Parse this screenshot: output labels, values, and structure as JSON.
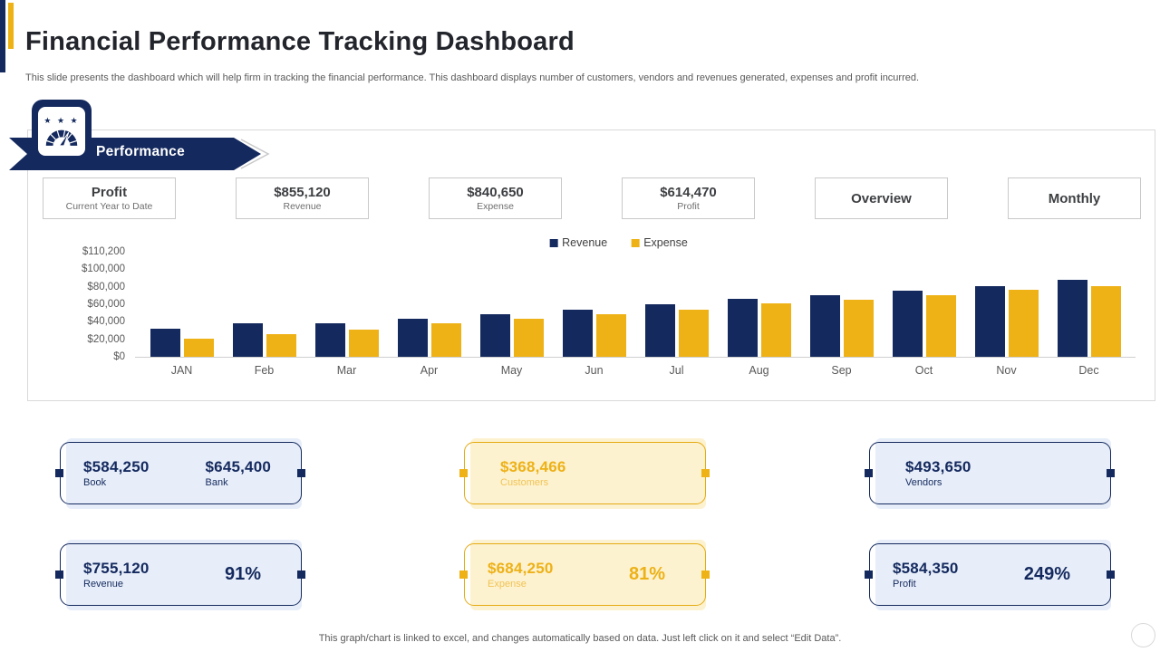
{
  "page": {
    "title": "Financial Performance Tracking Dashboard",
    "subtitle": "This slide presents the dashboard which will help firm in tracking the financial performance. This dashboard displays number of customers, vendors and revenues generated, expenses and profit incurred.",
    "footer": "This graph/chart is linked to excel, and changes automatically based on data. Just left click on it and select “Edit Data”."
  },
  "theme": {
    "navy": "#14295e",
    "gold": "#eeb216"
  },
  "banner": {
    "label": "Performance",
    "icon": "gauge-with-stars-icon"
  },
  "kpis": [
    {
      "name": "kpi-profit-current-year",
      "value": "Profit",
      "label": "Current Year to Date",
      "interactable": false
    },
    {
      "name": "kpi-revenue",
      "value": "$855,120",
      "label": "Revenue",
      "interactable": false
    },
    {
      "name": "kpi-expense",
      "value": "$840,650",
      "label": "Expense",
      "interactable": false
    },
    {
      "name": "kpi-profit",
      "value": "$614,470",
      "label": "Profit",
      "interactable": false
    },
    {
      "name": "view-toggle-overview",
      "value": "Overview",
      "label": "",
      "interactable": true
    },
    {
      "name": "view-toggle-monthly",
      "value": "Monthly",
      "label": "",
      "interactable": true
    }
  ],
  "chart_data": {
    "type": "bar",
    "title": "",
    "categories": [
      "JAN",
      "Feb",
      "Mar",
      "Apr",
      "May",
      "Jun",
      "Jul",
      "Aug",
      "Sep",
      "Oct",
      "Nov",
      "Dec"
    ],
    "series": [
      {
        "name": "Revenue",
        "color": "#14295e",
        "values": [
          32000,
          38000,
          38000,
          43000,
          49000,
          54000,
          60000,
          66000,
          70000,
          76000,
          81000,
          88000
        ]
      },
      {
        "name": "Expense",
        "color": "#eeb216",
        "values": [
          21000,
          26000,
          31000,
          38000,
          43000,
          49000,
          54000,
          61000,
          65000,
          70000,
          77000,
          81000
        ]
      }
    ],
    "y_ticks": [
      "$110,200",
      "$100,000",
      "$80,000",
      "$60,000",
      "$40,000",
      "$20,000",
      "$0"
    ],
    "ylim": [
      0,
      110200
    ],
    "xlabel": "",
    "ylabel": "",
    "legend_position": "top-center",
    "grid": false
  },
  "stat_cards": [
    {
      "name": "card-book-bank",
      "theme": "navy",
      "row": 0,
      "col": 0,
      "items": [
        {
          "value": "$584,250",
          "label": "Book"
        },
        {
          "value": "$645,400",
          "label": "Bank"
        }
      ],
      "percent": ""
    },
    {
      "name": "card-customers",
      "theme": "gold",
      "row": 0,
      "col": 1,
      "items": [
        {
          "value": "$368,466",
          "label": "Customers"
        }
      ],
      "percent": ""
    },
    {
      "name": "card-vendors",
      "theme": "navy",
      "row": 0,
      "col": 2,
      "items": [
        {
          "value": "$493,650",
          "label": "Vendors"
        }
      ],
      "percent": ""
    },
    {
      "name": "card-revenue-percent",
      "theme": "navy",
      "row": 1,
      "col": 0,
      "items": [
        {
          "value": "$755,120",
          "label": "Revenue"
        }
      ],
      "percent": "91%"
    },
    {
      "name": "card-expense-percent",
      "theme": "gold",
      "row": 1,
      "col": 1,
      "items": [
        {
          "value": "$684,250",
          "label": "Expense"
        }
      ],
      "percent": "81%"
    },
    {
      "name": "card-profit-percent",
      "theme": "navy",
      "row": 1,
      "col": 2,
      "items": [
        {
          "value": "$584,350",
          "label": "Profit"
        }
      ],
      "percent": "249%"
    }
  ]
}
